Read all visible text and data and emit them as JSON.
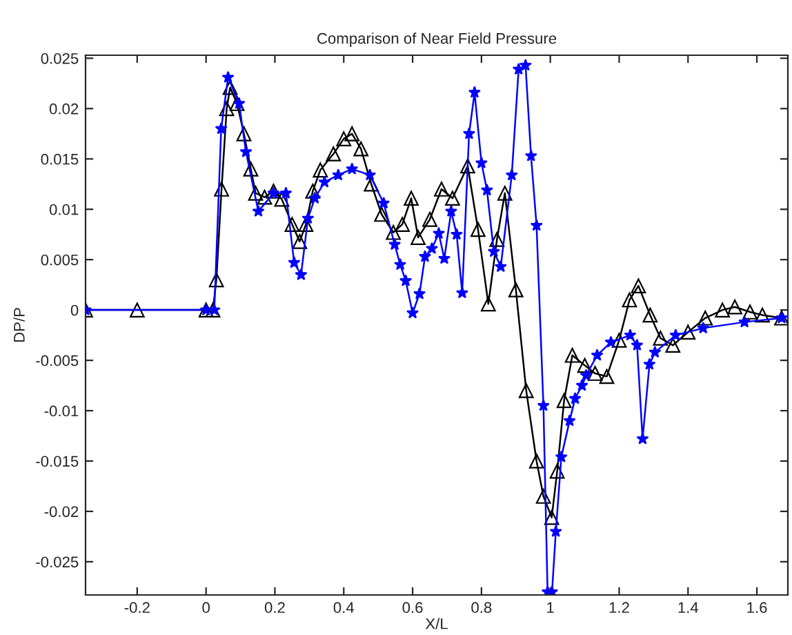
{
  "chart_data": {
    "type": "line",
    "title": "Comparison of Near Field Pressure",
    "xlabel": "X/L",
    "ylabel": "DP/P",
    "xlim": [
      -0.35,
      1.69
    ],
    "ylim": [
      -0.0283,
      0.0253
    ],
    "xticks": [
      -0.2,
      0,
      0.2,
      0.4,
      0.6,
      0.8,
      1,
      1.2,
      1.4,
      1.6
    ],
    "yticks": [
      -0.025,
      -0.02,
      -0.015,
      -0.01,
      -0.005,
      0,
      0.005,
      0.01,
      0.015,
      0.02,
      0.025
    ],
    "grid": false,
    "legend": false,
    "series": [
      {
        "color": "#000000",
        "marker": "triangle",
        "x": [
          -0.35,
          -0.2,
          0,
          0.02,
          0.03,
          0.045,
          0.06,
          0.07,
          0.09,
          0.11,
          0.13,
          0.144,
          0.17,
          0.196,
          0.22,
          0.25,
          0.272,
          0.29,
          0.31,
          0.332,
          0.37,
          0.4,
          0.424,
          0.45,
          0.48,
          0.51,
          0.544,
          0.57,
          0.596,
          0.616,
          0.65,
          0.684,
          0.716,
          0.76,
          0.79,
          0.82,
          0.845,
          0.868,
          0.9,
          0.93,
          0.96,
          0.98,
          1.004,
          1.02,
          1.04,
          1.064,
          1.1,
          1.13,
          1.164,
          1.2,
          1.23,
          1.256,
          1.29,
          1.32,
          1.356,
          1.4,
          1.45,
          1.5,
          1.536,
          1.58,
          1.616,
          1.672
        ],
        "values": [
          0,
          0,
          0,
          0,
          0.003,
          0.012,
          0.02,
          0.0221,
          0.0205,
          0.0175,
          0.014,
          0.0116,
          0.0112,
          0.0118,
          0.011,
          0.0085,
          0.0068,
          0.0085,
          0.0118,
          0.0139,
          0.0155,
          0.017,
          0.0175,
          0.016,
          0.0125,
          0.0095,
          0.0077,
          0.0085,
          0.0111,
          0.0072,
          0.009,
          0.012,
          0.0111,
          0.0143,
          0.008,
          0.0006,
          0.007,
          0.0116,
          0.002,
          -0.008,
          -0.015,
          -0.0185,
          -0.0206,
          -0.016,
          -0.009,
          -0.0045,
          -0.0055,
          -0.0063,
          -0.0066,
          -0.003,
          0.001,
          0.0024,
          -0.0005,
          -0.0028,
          -0.0035,
          -0.0022,
          -0.0008,
          0.0,
          0.0003,
          -0.0002,
          -0.0005,
          -0.0008
        ]
      },
      {
        "color": "#0000ff",
        "marker": "star",
        "x": [
          -0.35,
          0,
          0.024,
          0.044,
          0.064,
          0.096,
          0.116,
          0.152,
          0.196,
          0.232,
          0.256,
          0.276,
          0.296,
          0.316,
          0.344,
          0.384,
          0.424,
          0.476,
          0.516,
          0.548,
          0.564,
          0.58,
          0.6,
          0.62,
          0.636,
          0.656,
          0.676,
          0.692,
          0.712,
          0.728,
          0.744,
          0.764,
          0.78,
          0.8,
          0.816,
          0.836,
          0.856,
          0.888,
          0.908,
          0.928,
          0.944,
          0.96,
          0.98,
          0.992,
          1.005,
          1.016,
          1.032,
          1.056,
          1.072,
          1.092,
          1.104,
          1.136,
          1.176,
          1.232,
          1.252,
          1.268,
          1.288,
          1.304,
          1.364,
          1.444,
          1.564,
          1.672
        ],
        "values": [
          0,
          0,
          0,
          0.018,
          0.0231,
          0.0205,
          0.0157,
          0.0098,
          0.0116,
          0.0116,
          0.0047,
          0.0035,
          0.0091,
          0.0111,
          0.0127,
          0.0134,
          0.014,
          0.0134,
          0.0106,
          0.0065,
          0.0045,
          0.0029,
          -0.0003,
          0.0016,
          0.0053,
          0.0061,
          0.0076,
          0.0051,
          0.0098,
          0.0075,
          0.0017,
          0.0175,
          0.0216,
          0.0146,
          0.0119,
          0.0058,
          0.0043,
          0.0134,
          0.0239,
          0.0243,
          0.0153,
          0.0084,
          -0.0095,
          -0.028,
          -0.028,
          -0.022,
          -0.0146,
          -0.011,
          -0.0088,
          -0.0075,
          -0.0065,
          -0.0045,
          -0.0032,
          -0.0025,
          -0.0035,
          -0.0128,
          -0.0054,
          -0.0042,
          -0.0025,
          -0.0018,
          -0.0012,
          -0.0008
        ]
      }
    ]
  }
}
